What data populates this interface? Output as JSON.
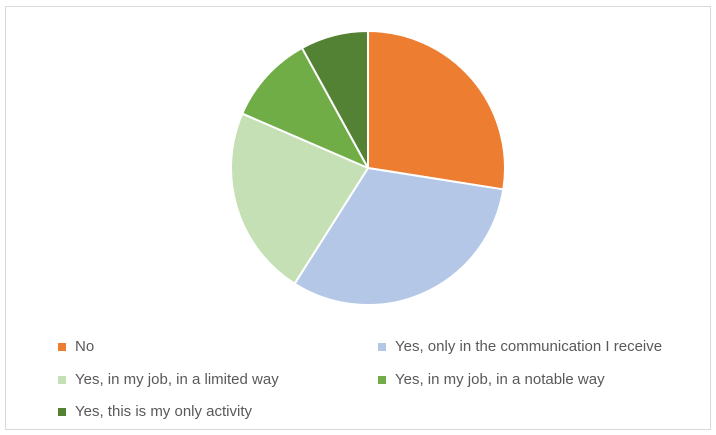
{
  "chart_data": {
    "type": "pie",
    "start_angle_deg": 0,
    "direction": "clockwise",
    "legend_position": "bottom",
    "slices": [
      {
        "label": "No",
        "value": 27.5,
        "color": "#ED7D31"
      },
      {
        "label": "Yes, only in the communication I receive",
        "value": 31.5,
        "color": "#B4C7E7"
      },
      {
        "label": "Yes, in my job, in a limited way",
        "value": 22.5,
        "color": "#C5E0B4"
      },
      {
        "label": "Yes, in my job, in a notable way",
        "value": 10.5,
        "color": "#70AD47"
      },
      {
        "label": "Yes, this is my only activity",
        "value": 8,
        "color": "#548235"
      }
    ]
  }
}
